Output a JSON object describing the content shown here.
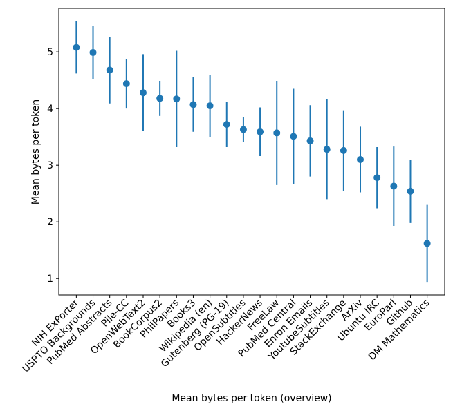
{
  "chart_data": {
    "type": "errorbar",
    "xlabel": "Mean bytes per token (overview)",
    "ylabel": "Mean bytes per token",
    "categories": [
      "NIH ExPorter",
      "USPTO Backgrounds",
      "PubMed Abstracts",
      "Pile-CC",
      "OpenWebText2",
      "BookCorpus2",
      "PhilPapers",
      "Books3",
      "Wikipedia (en)",
      "Gutenberg (PG-19)",
      "OpenSubtitles",
      "HackerNews",
      "FreeLaw",
      "PubMed Central",
      "Enron Emails",
      "YoutubeSubtitles",
      "StackExchange",
      "ArXiv",
      "Ubuntu IRC",
      "EuroParl",
      "Github",
      "DM Mathematics"
    ],
    "values": [
      5.08,
      4.99,
      4.68,
      4.44,
      4.28,
      4.18,
      4.17,
      4.07,
      4.05,
      3.72,
      3.63,
      3.59,
      3.57,
      3.51,
      3.43,
      3.28,
      3.26,
      3.1,
      2.78,
      2.63,
      2.54,
      1.62
    ],
    "errors": [
      0.46,
      0.47,
      0.59,
      0.44,
      0.68,
      0.31,
      0.85,
      0.48,
      0.55,
      0.4,
      0.22,
      0.43,
      0.92,
      0.84,
      0.63,
      0.88,
      0.71,
      0.58,
      0.54,
      0.7,
      0.56,
      0.68
    ],
    "color": "#1f77b4",
    "ylim": [
      0.71,
      5.77
    ],
    "yticks": [
      1,
      2,
      3,
      4,
      5
    ]
  }
}
